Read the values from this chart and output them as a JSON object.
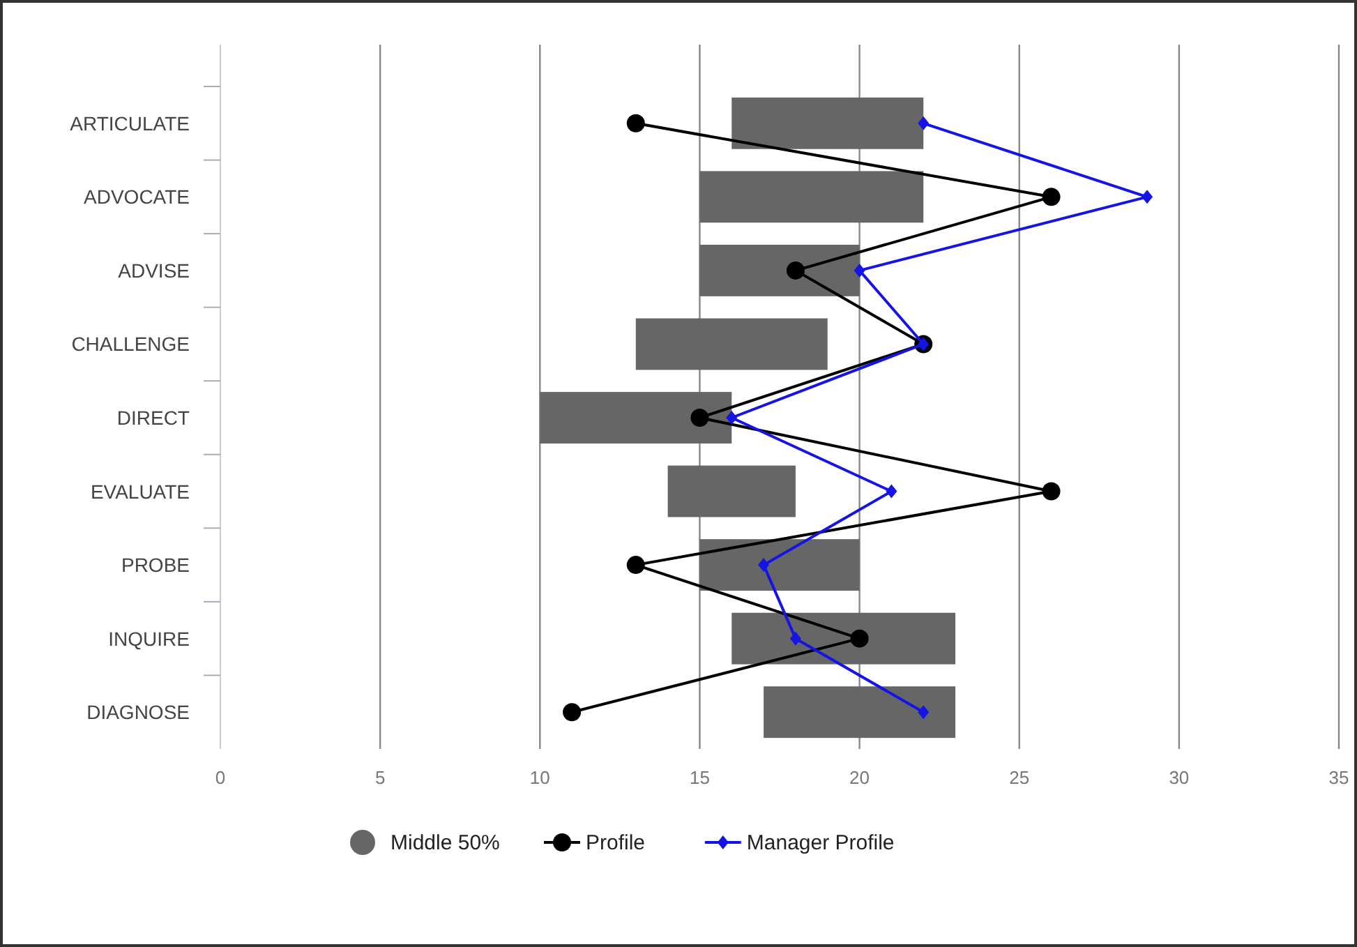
{
  "chart_data": {
    "type": "bar",
    "orientation": "horizontal",
    "categories": [
      "ARTICULATE",
      "ADVOCATE",
      "ADVISE",
      "CHALLENGE",
      "DIRECT",
      "EVALUATE",
      "PROBE",
      "INQUIRE",
      "DIAGNOSE"
    ],
    "series": [
      {
        "name": "Middle 50%",
        "color": "#666666",
        "base": [
          16,
          15,
          15,
          13,
          10,
          14,
          15,
          16,
          17
        ],
        "values": [
          6,
          7,
          5,
          6,
          6,
          4,
          5,
          7,
          6
        ]
      },
      {
        "name": "Profile",
        "type": "line",
        "color": "#000000",
        "marker": "circle",
        "values": [
          13,
          26,
          18,
          22,
          15,
          26,
          13,
          20,
          11
        ]
      },
      {
        "name": "Manager Profile",
        "type": "line",
        "color": "#1414e6",
        "marker": "diamond",
        "values": [
          22,
          29,
          20,
          22,
          16,
          21,
          17,
          18,
          22
        ]
      }
    ],
    "xlim": [
      0,
      35
    ],
    "xticks": [
      0,
      5,
      10,
      15,
      20,
      25,
      30,
      35
    ],
    "grid": "x",
    "legend": "bottom"
  }
}
